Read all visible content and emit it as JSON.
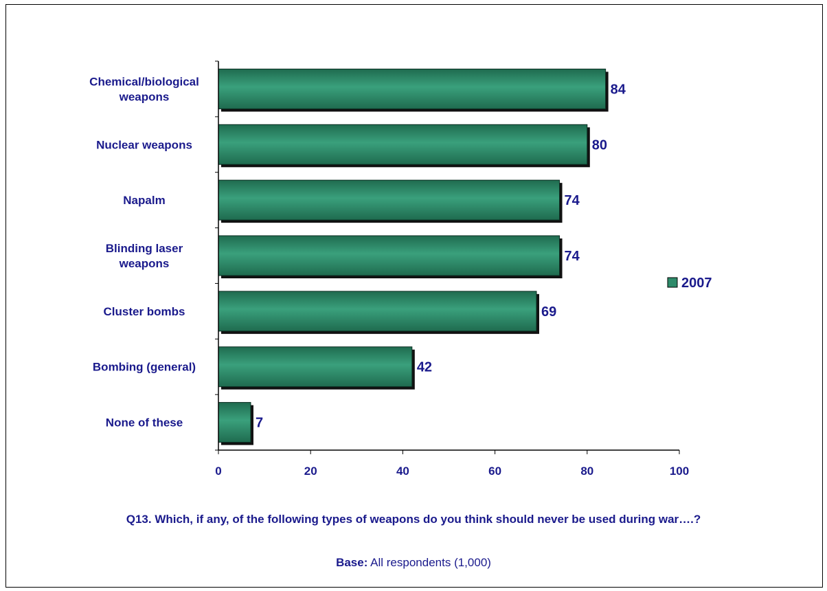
{
  "chart_data": {
    "type": "bar",
    "orientation": "horizontal",
    "categories": [
      "Chemical/biological weapons",
      "Nuclear weapons",
      "Napalm",
      "Blinding laser weapons",
      "Cluster bombs",
      "Bombing (general)",
      "None of these"
    ],
    "series": [
      {
        "name": "2007",
        "values": [
          84,
          80,
          74,
          74,
          69,
          42,
          7
        ]
      }
    ],
    "xlim": [
      0,
      100
    ],
    "x_ticks": [
      "0",
      "20",
      "40",
      "60",
      "80",
      "100"
    ],
    "legend_position": "right",
    "grid": false,
    "colors": {
      "bar": "#2e8b6a",
      "shadow": "#111111",
      "text": "#1a1a8c"
    }
  },
  "caption": {
    "question": "Q13. Which, if any, of the following types of weapons do you think should never be used during war….?",
    "base_label": "Base:",
    "base_text": " All respondents (1,000)"
  }
}
